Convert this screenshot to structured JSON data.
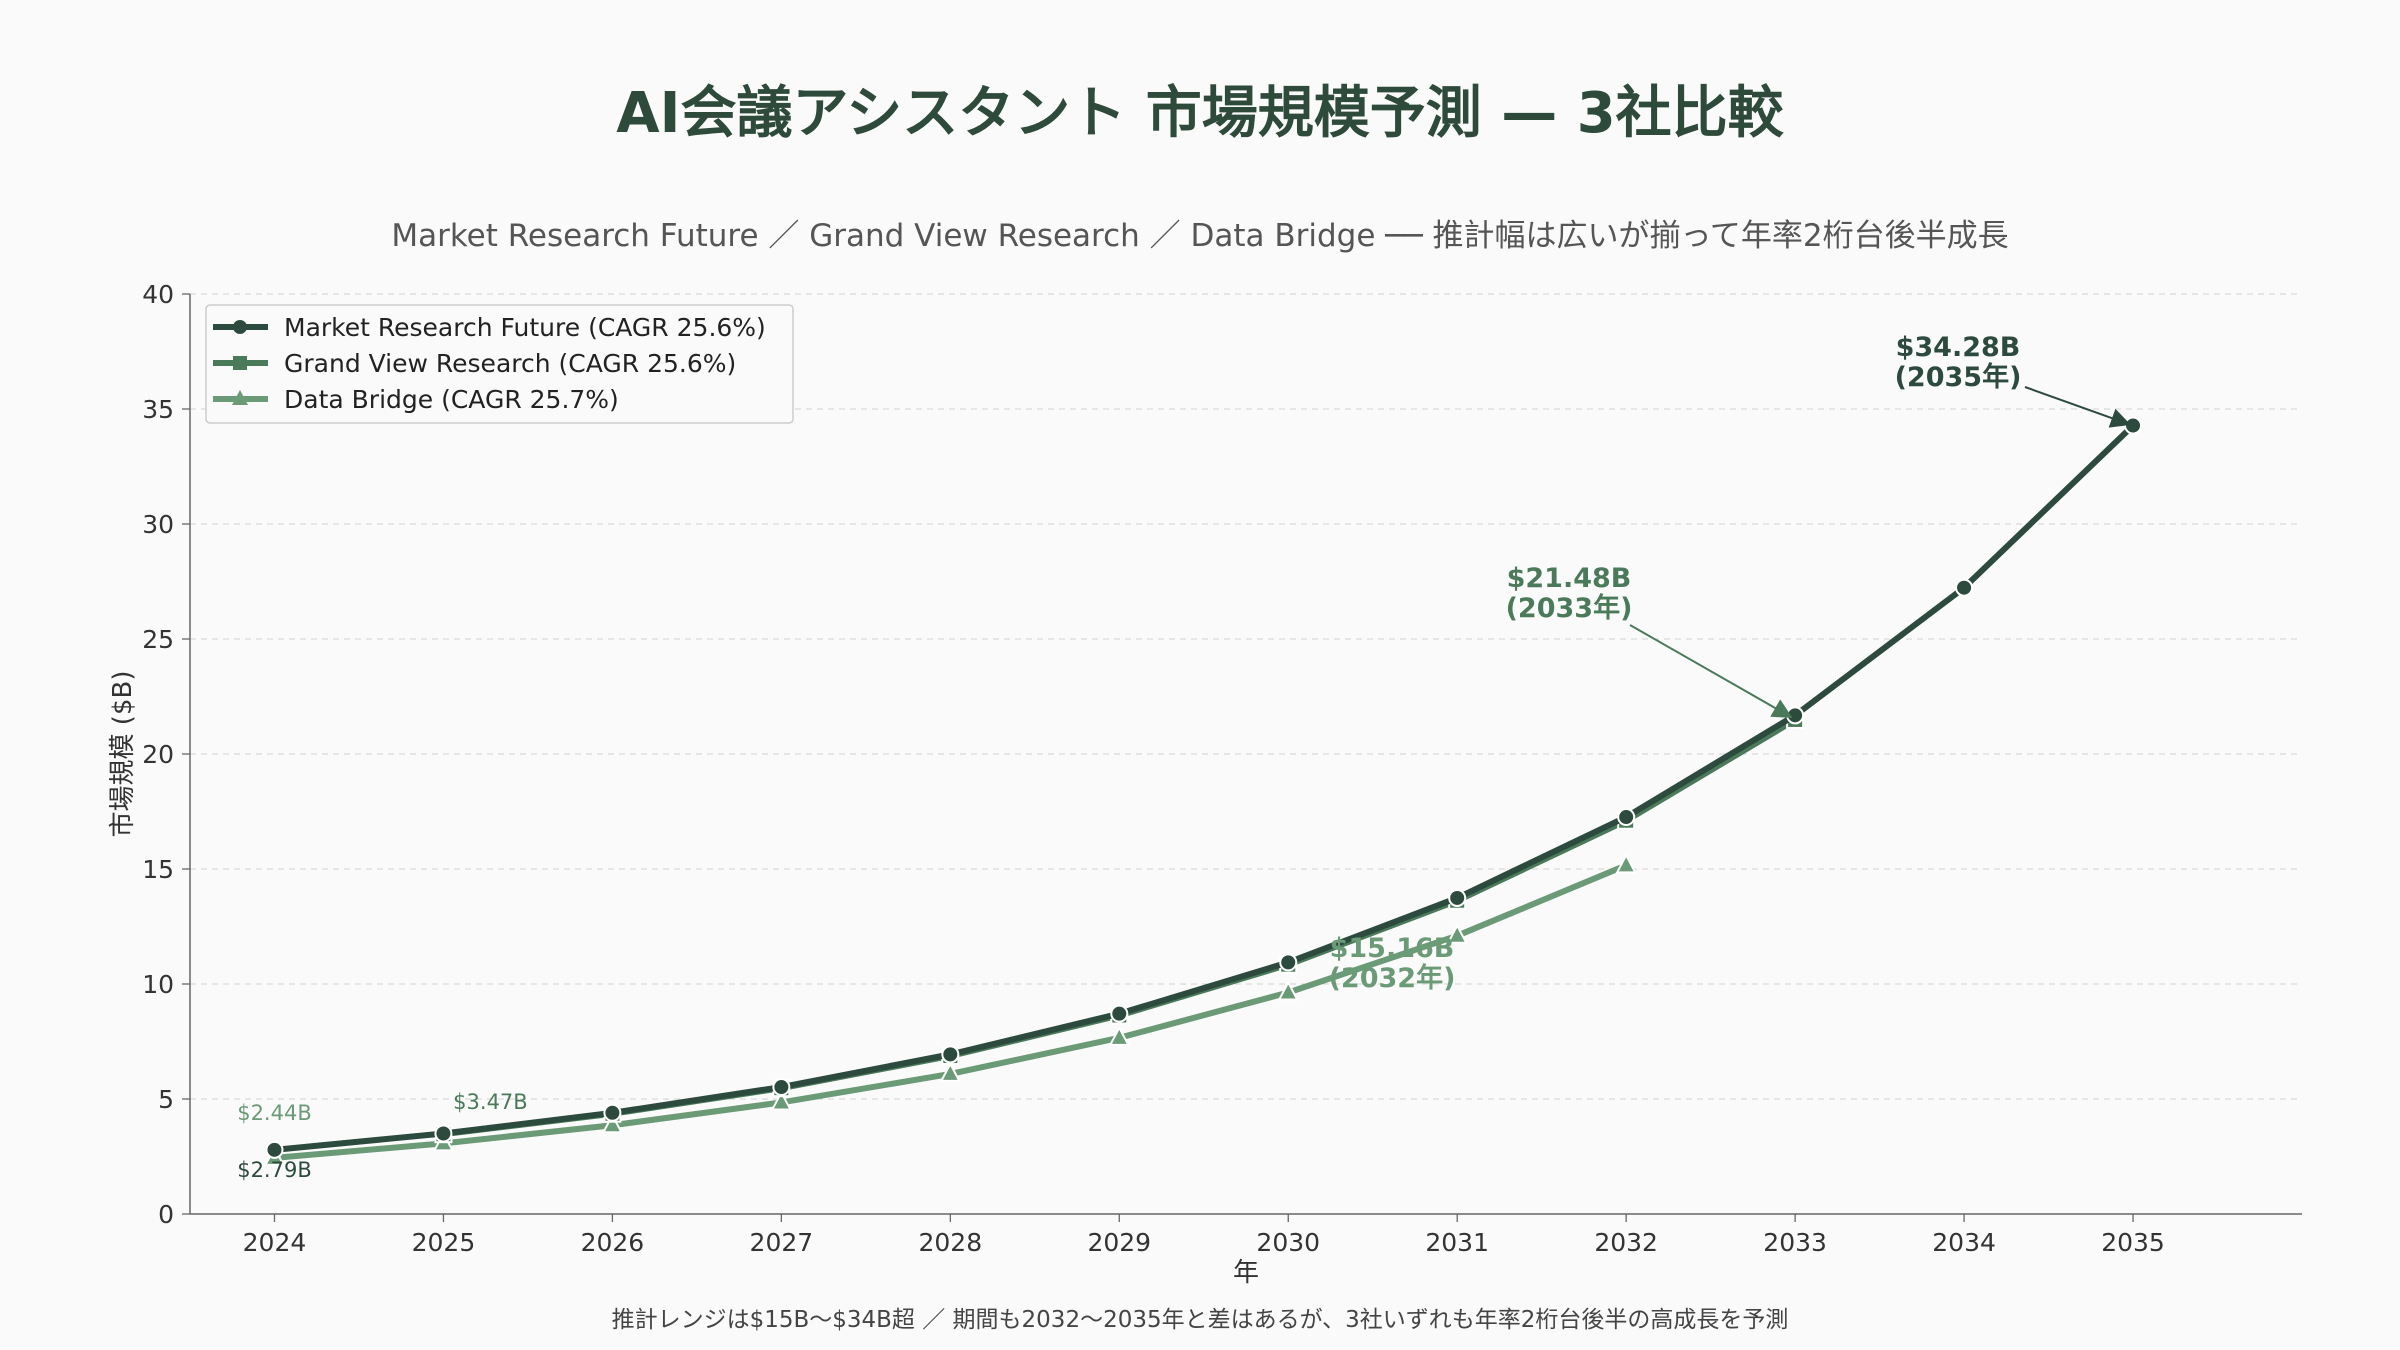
{
  "title": "AI会議アシスタント 市場規模予測 — 3社比較",
  "subtitle": "Market Research Future ／ Grand View Research ／ Data Bridge ── 推計幅は広いが揃って年率2桁台後半成長",
  "footnote": "推計レンジは$15B〜$34B超 ／ 期間も2032〜2035年と差はあるが、3社いずれも年率2桁台後半の高成長を予測",
  "chart_data": {
    "type": "line",
    "xlabel": "年",
    "ylabel": "市場規模 ($B)",
    "x": [
      2024,
      2025,
      2026,
      2027,
      2028,
      2029,
      2030,
      2031,
      2032,
      2033,
      2034,
      2035
    ],
    "ylim": [
      0,
      40
    ],
    "yticks": [
      0,
      5,
      10,
      15,
      20,
      25,
      30,
      35,
      40
    ],
    "grid": "horizontal dashed",
    "legend_position": "top-left",
    "series": [
      {
        "name": "Market Research Future (CAGR 25.6%)",
        "color": "#2d4a3e",
        "marker": "circle",
        "x": [
          2024,
          2025,
          2026,
          2027,
          2028,
          2029,
          2030,
          2031,
          2032,
          2033,
          2034,
          2035
        ],
        "values": [
          2.79,
          3.5,
          4.4,
          5.52,
          6.94,
          8.71,
          10.94,
          13.74,
          17.26,
          21.68,
          27.23,
          34.28
        ]
      },
      {
        "name": "Grand View Research (CAGR 25.6%)",
        "color": "#4a7a5a",
        "marker": "square",
        "x": [
          2025,
          2026,
          2027,
          2028,
          2029,
          2030,
          2031,
          2032,
          2033
        ],
        "values": [
          3.47,
          4.36,
          5.47,
          6.87,
          8.63,
          10.84,
          13.62,
          17.1,
          21.48
        ]
      },
      {
        "name": "Data Bridge (CAGR 25.7%)",
        "color": "#6b9a76",
        "marker": "triangle",
        "x": [
          2024,
          2025,
          2026,
          2027,
          2028,
          2029,
          2030,
          2031,
          2032
        ],
        "values": [
          2.44,
          3.07,
          3.86,
          4.85,
          6.09,
          7.66,
          9.63,
          12.1,
          15.16
        ]
      }
    ],
    "annotations": [
      {
        "line1": "$34.28B",
        "line2": "(2035年)",
        "x": 2035,
        "y": 34.28,
        "color": "#2d4a3e"
      },
      {
        "line1": "$21.48B",
        "line2": "(2033年)",
        "x": 2033,
        "y": 21.48,
        "color": "#4a7a5a"
      },
      {
        "line1": "$15.16B",
        "line2": "(2032年)",
        "x": 2032,
        "y": 15.16,
        "color": "#6b9a76"
      }
    ],
    "start_labels": [
      {
        "text": "$2.44B",
        "color": "#6b9a76"
      },
      {
        "text": "$3.47B",
        "color": "#4a7a5a"
      },
      {
        "text": "$2.79B",
        "color": "#2d4a3e"
      }
    ]
  }
}
